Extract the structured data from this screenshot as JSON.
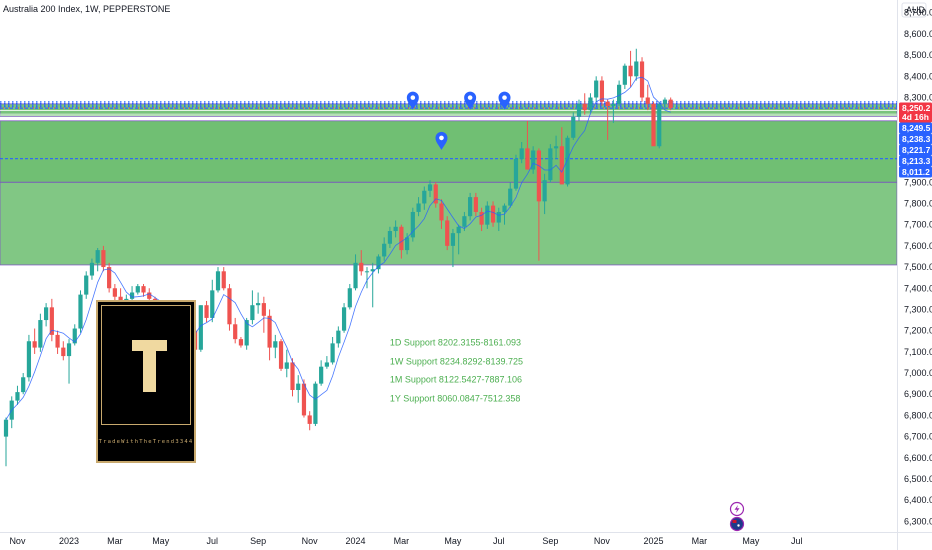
{
  "header": {
    "title": "Australia 200 Index, 1W, PEPPERSTONE",
    "currency": "AUD"
  },
  "logo": {
    "letter": "T",
    "brand": "TradeWithTheTrend3344"
  },
  "icons": {
    "lightning": "lightning-icon",
    "flag": "flag-icon",
    "pin": "map-pin-icon"
  },
  "colors": {
    "up": "#26a69a",
    "down": "#ef5350",
    "zone": "#4caf50",
    "blue": "#2962ff",
    "price": "#f23645"
  },
  "chart_data": {
    "type": "candlestick",
    "title": "Australia 200 Index, 1W, PEPPERSTONE",
    "ylim": [
      6250,
      8760
    ],
    "y_ticks": [
      "8,700.0",
      "8,600.0",
      "8,500.0",
      "8,400.0",
      "8,300.0",
      "8,200.0",
      "8,100.0",
      "8,000.0",
      "7,900.0",
      "7,800.0",
      "7,700.0",
      "7,600.0",
      "7,500.0",
      "7,400.0",
      "7,300.0",
      "7,200.0",
      "7,100.0",
      "7,000.0",
      "6,900.0",
      "6,800.0",
      "6,700.0",
      "6,600.0",
      "6,500.0",
      "6,400.0",
      "6,300.0"
    ],
    "x_ticks": [
      {
        "label": "Nov",
        "week": 2
      },
      {
        "label": "2023",
        "week": 11
      },
      {
        "label": "Mar",
        "week": 19
      },
      {
        "label": "May",
        "week": 27
      },
      {
        "label": "Jul",
        "week": 36
      },
      {
        "label": "Sep",
        "week": 44
      },
      {
        "label": "Nov",
        "week": 53
      },
      {
        "label": "2024",
        "week": 61
      },
      {
        "label": "Mar",
        "week": 69
      },
      {
        "label": "May",
        "week": 78
      },
      {
        "label": "Jul",
        "week": 86
      },
      {
        "label": "Sep",
        "week": 95
      },
      {
        "label": "Nov",
        "week": 104
      },
      {
        "label": "2025",
        "week": 113
      },
      {
        "label": "Mar",
        "week": 121
      },
      {
        "label": "May",
        "week": 130
      },
      {
        "label": "Jul",
        "week": 138
      }
    ],
    "candles": [
      [
        6700,
        6790,
        6560,
        6780
      ],
      [
        6780,
        6890,
        6740,
        6870
      ],
      [
        6870,
        6940,
        6850,
        6910
      ],
      [
        6910,
        7000,
        6900,
        6980
      ],
      [
        6980,
        7180,
        6960,
        7150
      ],
      [
        7150,
        7210,
        7090,
        7120
      ],
      [
        7120,
        7280,
        7100,
        7250
      ],
      [
        7250,
        7330,
        7220,
        7310
      ],
      [
        7310,
        7350,
        7150,
        7180
      ],
      [
        7180,
        7200,
        7090,
        7120
      ],
      [
        7120,
        7150,
        7060,
        7080
      ],
      [
        7080,
        7160,
        6950,
        7140
      ],
      [
        7140,
        7230,
        7130,
        7210
      ],
      [
        7210,
        7390,
        7190,
        7370
      ],
      [
        7370,
        7480,
        7350,
        7460
      ],
      [
        7460,
        7540,
        7440,
        7520
      ],
      [
        7520,
        7590,
        7480,
        7580
      ],
      [
        7580,
        7600,
        7480,
        7500
      ],
      [
        7500,
        7520,
        7380,
        7400
      ],
      [
        7400,
        7420,
        7330,
        7360
      ],
      [
        7360,
        7400,
        7290,
        7300
      ],
      [
        7300,
        7370,
        7280,
        7350
      ],
      [
        7350,
        7410,
        7310,
        7380
      ],
      [
        7380,
        7420,
        7370,
        7410
      ],
      [
        7410,
        7420,
        7360,
        7380
      ],
      [
        7380,
        7400,
        7330,
        7350
      ],
      [
        7350,
        7360,
        7220,
        7260
      ],
      [
        7260,
        7320,
        7240,
        7290
      ],
      [
        7290,
        7300,
        7200,
        7230
      ],
      [
        7230,
        7250,
        7110,
        7130
      ],
      [
        7130,
        7200,
        7120,
        7190
      ],
      [
        7190,
        7310,
        7170,
        7300
      ],
      [
        7300,
        7320,
        7180,
        7200
      ],
      [
        7200,
        7210,
        7100,
        7110
      ],
      [
        7110,
        7320,
        7100,
        7320
      ],
      [
        7320,
        7340,
        7240,
        7260
      ],
      [
        7260,
        7440,
        7240,
        7390
      ],
      [
        7390,
        7500,
        7380,
        7480
      ],
      [
        7480,
        7500,
        7390,
        7400
      ],
      [
        7400,
        7420,
        7200,
        7230
      ],
      [
        7230,
        7260,
        7140,
        7160
      ],
      [
        7160,
        7170,
        7120,
        7130
      ],
      [
        7130,
        7260,
        7110,
        7250
      ],
      [
        7250,
        7390,
        7230,
        7320
      ],
      [
        7320,
        7380,
        7280,
        7330
      ],
      [
        7330,
        7360,
        7190,
        7270
      ],
      [
        7270,
        7300,
        7060,
        7120
      ],
      [
        7120,
        7180,
        7070,
        7150
      ],
      [
        7150,
        7160,
        7010,
        7020
      ],
      [
        7020,
        7110,
        6980,
        7050
      ],
      [
        7050,
        7070,
        6890,
        6920
      ],
      [
        6920,
        6990,
        6860,
        6950
      ],
      [
        6950,
        6970,
        6790,
        6800
      ],
      [
        6800,
        6820,
        6730,
        6760
      ],
      [
        6760,
        6960,
        6750,
        6950
      ],
      [
        6950,
        7060,
        6940,
        7030
      ],
      [
        7030,
        7080,
        7020,
        7050
      ],
      [
        7050,
        7170,
        7040,
        7140
      ],
      [
        7140,
        7220,
        7120,
        7200
      ],
      [
        7200,
        7330,
        7190,
        7310
      ],
      [
        7310,
        7420,
        7300,
        7400
      ],
      [
        7400,
        7560,
        7390,
        7520
      ],
      [
        7520,
        7580,
        7460,
        7480
      ],
      [
        7480,
        7500,
        7400,
        7480
      ],
      [
        7480,
        7520,
        7310,
        7490
      ],
      [
        7490,
        7560,
        7470,
        7550
      ],
      [
        7550,
        7640,
        7530,
        7610
      ],
      [
        7610,
        7690,
        7590,
        7670
      ],
      [
        7670,
        7720,
        7640,
        7690
      ],
      [
        7690,
        7700,
        7540,
        7580
      ],
      [
        7580,
        7660,
        7560,
        7640
      ],
      [
        7640,
        7780,
        7620,
        7760
      ],
      [
        7760,
        7830,
        7740,
        7800
      ],
      [
        7800,
        7880,
        7770,
        7860
      ],
      [
        7860,
        7910,
        7830,
        7890
      ],
      [
        7890,
        7900,
        7780,
        7800
      ],
      [
        7800,
        7820,
        7680,
        7720
      ],
      [
        7720,
        7740,
        7580,
        7600
      ],
      [
        7600,
        7680,
        7500,
        7660
      ],
      [
        7660,
        7700,
        7560,
        7690
      ],
      [
        7690,
        7760,
        7670,
        7740
      ],
      [
        7740,
        7850,
        7720,
        7830
      ],
      [
        7830,
        7850,
        7740,
        7760
      ],
      [
        7760,
        7780,
        7670,
        7700
      ],
      [
        7700,
        7810,
        7680,
        7790
      ],
      [
        7790,
        7810,
        7690,
        7710
      ],
      [
        7710,
        7780,
        7670,
        7760
      ],
      [
        7760,
        7800,
        7700,
        7790
      ],
      [
        7790,
        7900,
        7780,
        7870
      ],
      [
        7870,
        8030,
        7860,
        8010
      ],
      [
        8010,
        8090,
        7990,
        8060
      ],
      [
        8060,
        8190,
        7960,
        7960
      ],
      [
        7960,
        8070,
        7940,
        8050
      ],
      [
        8050,
        8060,
        7530,
        7810
      ],
      [
        7810,
        7940,
        7750,
        7910
      ],
      [
        7910,
        8080,
        7900,
        8060
      ],
      [
        8060,
        8120,
        8010,
        8070
      ],
      [
        8070,
        8160,
        7890,
        7890
      ],
      [
        7890,
        8120,
        7880,
        8110
      ],
      [
        8110,
        8230,
        8100,
        8210
      ],
      [
        8210,
        8290,
        8190,
        8270
      ],
      [
        8270,
        8320,
        8220,
        8240
      ],
      [
        8240,
        8320,
        8230,
        8300
      ],
      [
        8300,
        8400,
        8280,
        8380
      ],
      [
        8380,
        8400,
        8260,
        8280
      ],
      [
        8280,
        8290,
        8100,
        8260
      ],
      [
        8260,
        8290,
        8180,
        8270
      ],
      [
        8270,
        8380,
        8260,
        8360
      ],
      [
        8360,
        8460,
        8340,
        8450
      ],
      [
        8450,
        8520,
        8350,
        8400
      ],
      [
        8400,
        8530,
        8380,
        8470
      ],
      [
        8470,
        8490,
        8280,
        8300
      ],
      [
        8300,
        8360,
        8240,
        8270
      ],
      [
        8270,
        8280,
        8080,
        8070
      ],
      [
        8070,
        8280,
        8060,
        8270
      ],
      [
        8270,
        8300,
        8240,
        8290
      ],
      [
        8290,
        8300,
        8240,
        8250
      ]
    ],
    "zones": [
      {
        "top": 8270,
        "bottom": 8210
      },
      {
        "top": 8190,
        "bottom": 7900
      },
      {
        "top": 7900,
        "bottom": 7510
      }
    ],
    "levels": [
      {
        "value": 8279,
        "style": "dotted"
      },
      {
        "value": 8271,
        "style": "dotted"
      },
      {
        "value": 8264,
        "style": "dotted"
      },
      {
        "value": 8257,
        "style": "dotted"
      },
      {
        "value": 8250.2,
        "style": "price"
      },
      {
        "value": 8249.5,
        "style": "dashed"
      },
      {
        "value": 8238.3,
        "style": "solid"
      },
      {
        "value": 8221.7,
        "style": "solid"
      },
      {
        "value": 8213.3,
        "style": "solid"
      },
      {
        "value": 8011.2,
        "style": "dashed"
      }
    ],
    "price_tags": [
      {
        "label": "8,250.2",
        "value": 8250.2,
        "sub": "4d 16h",
        "color": "#f23645"
      },
      {
        "label": "8,249.5",
        "value": 8249.5,
        "sub": "",
        "color": "#2962ff"
      },
      {
        "label": "8,238.3",
        "value": 8238.3,
        "sub": "",
        "color": "#2962ff"
      },
      {
        "label": "8,221.7",
        "value": 8221.7,
        "sub": "",
        "color": "#2962ff"
      },
      {
        "label": "8,213.3",
        "value": 8213.3,
        "sub": "",
        "color": "#2962ff"
      },
      {
        "label": "8,011.2",
        "value": 8011.2,
        "sub": "",
        "color": "#2962ff"
      }
    ],
    "pins": [
      {
        "week": 71,
        "value": 8290
      },
      {
        "week": 81,
        "value": 8290
      },
      {
        "week": 87,
        "value": 8290
      },
      {
        "week": 76,
        "value": 8100
      }
    ],
    "annotations": [
      {
        "text": "1D Support 8202.3155-8161.093",
        "week": 67,
        "value": 7130
      },
      {
        "text": "1W Support 8234.8292-8139.725",
        "week": 67,
        "value": 7040
      },
      {
        "text": "1M Support 8122.5427-7887.106",
        "week": 67,
        "value": 6955
      },
      {
        "text": "1Y Support 8060.0847-7512.358",
        "week": 67,
        "value": 6865
      }
    ]
  }
}
